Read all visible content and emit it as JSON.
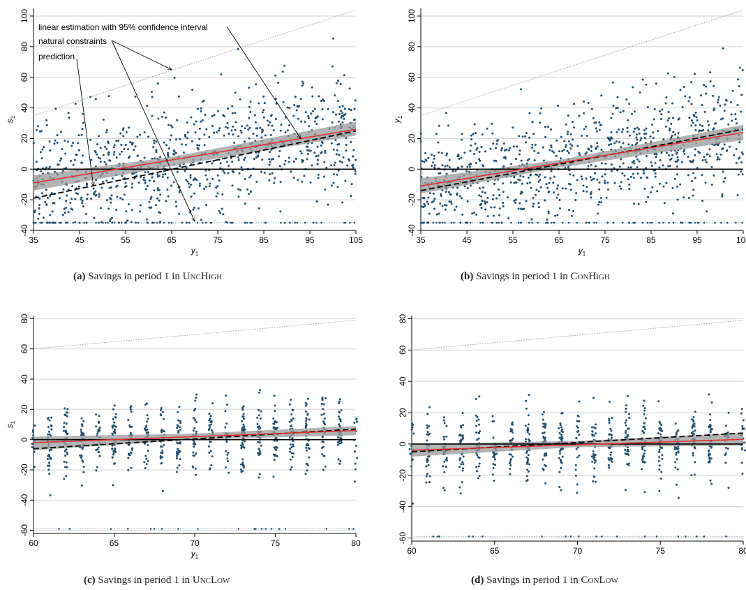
{
  "colors": {
    "points": "#1f4e6e",
    "fit_line": "#e03030",
    "prediction_line": "#000000",
    "confidence_band": "#9a9a9a",
    "constraint_line": "#9a9a9a",
    "zero_line": "#000000",
    "gridline": "#d9d9d9"
  },
  "chart_data": [
    {
      "type": "scatter",
      "panel": "a",
      "caption_label": "(a)",
      "caption_text": "Savings in period 1 in",
      "caption_treatment": "UncHigh",
      "xlabel": "y",
      "xlabel_sub": "1",
      "ylabel": "s",
      "ylabel_sub": "1",
      "xlim": [
        35,
        105
      ],
      "ylim": [
        -40,
        105
      ],
      "xticks": [
        35,
        45,
        55,
        65,
        75,
        85,
        95,
        105
      ],
      "yticks": [
        -40,
        -20,
        0,
        20,
        40,
        60,
        80,
        100
      ],
      "grid": true,
      "legend_position": "top-left",
      "annotations": [
        {
          "text": "linear estimation with 95% confidence interval",
          "target": "fit"
        },
        {
          "text": "natural constraints",
          "target": "constraints"
        },
        {
          "text": "prediction",
          "target": "prediction"
        }
      ],
      "fit_line": {
        "x": [
          35,
          105
        ],
        "y": [
          -9,
          26
        ]
      },
      "confidence_band": {
        "x": [
          35,
          65,
          105
        ],
        "lower": [
          -14,
          2,
          22
        ],
        "upper": [
          -4,
          8,
          31
        ]
      },
      "prediction_line": {
        "x": [
          35,
          105
        ],
        "y": [
          -19,
          25
        ]
      },
      "upper_constraint": {
        "x": [
          35,
          105
        ],
        "y": [
          35,
          104
        ]
      },
      "lower_constraint": {
        "x": [
          35,
          105
        ],
        "y": [
          -35,
          -35
        ]
      },
      "cloud": {
        "n": 900,
        "noise": 20,
        "seed": 11,
        "lower_floor_points": 60
      }
    },
    {
      "type": "scatter",
      "panel": "b",
      "caption_label": "(b)",
      "caption_text": "Savings in period 1 in",
      "caption_treatment": "ConHigh",
      "xlabel": "y",
      "xlabel_sub": "1",
      "ylabel": "y",
      "ylabel_sub": "1",
      "xlim": [
        35,
        105
      ],
      "ylim": [
        -40,
        105
      ],
      "xticks": [
        35,
        45,
        55,
        65,
        75,
        85,
        95,
        105
      ],
      "yticks": [
        -40,
        -20,
        0,
        20,
        40,
        60,
        80,
        100
      ],
      "grid": true,
      "fit_line": {
        "x": [
          35,
          105
        ],
        "y": [
          -11,
          24
        ]
      },
      "confidence_band": {
        "x": [
          35,
          65,
          105
        ],
        "lower": [
          -16,
          1,
          19
        ],
        "upper": [
          -6,
          6,
          29
        ]
      },
      "prediction_line": {
        "x": [
          35,
          105
        ],
        "y": [
          -14,
          26
        ]
      },
      "upper_constraint": {
        "x": [
          35,
          105
        ],
        "y": [
          35,
          104
        ]
      },
      "lower_constraint": {
        "x": [
          35,
          105
        ],
        "y": [
          -35,
          -35
        ]
      },
      "cloud": {
        "n": 900,
        "noise": 18,
        "seed": 23,
        "lower_floor_points": 60
      }
    },
    {
      "type": "scatter",
      "panel": "c",
      "caption_label": "(c)",
      "caption_text": "Savings in period 1 in",
      "caption_treatment": "UncLow",
      "xlabel": "y",
      "xlabel_sub": "1",
      "ylabel": "s",
      "ylabel_sub": "1",
      "xlim": [
        60,
        80
      ],
      "ylim": [
        -62,
        82
      ],
      "xticks": [
        60,
        65,
        70,
        75,
        80
      ],
      "yticks": [
        -60,
        -40,
        -20,
        0,
        20,
        40,
        60,
        80
      ],
      "grid": true,
      "fit_line": {
        "x": [
          60,
          80
        ],
        "y": [
          -2,
          6
        ]
      },
      "confidence_band": {
        "x": [
          60,
          70,
          80
        ],
        "lower": [
          -7,
          0,
          3
        ],
        "upper": [
          2,
          4,
          9
        ]
      },
      "prediction_line": {
        "x": [
          60,
          80
        ],
        "y": [
          -6,
          7
        ]
      },
      "upper_constraint": {
        "x": [
          60,
          80
        ],
        "y": [
          60,
          79
        ]
      },
      "lower_constraint": {
        "x": [
          60,
          80
        ],
        "y": [
          -59,
          -59
        ]
      },
      "cloud": {
        "n": 650,
        "noise": 12,
        "seed": 37,
        "discrete": true,
        "lower_floor_points": 20
      }
    },
    {
      "type": "scatter",
      "panel": "d",
      "caption_label": "(d)",
      "caption_text": "Savings in period 1 in",
      "caption_treatment": "ConLow",
      "xlabel": "",
      "xlabel_sub": "",
      "ylabel": "",
      "ylabel_sub": "",
      "xlim": [
        60,
        80
      ],
      "ylim": [
        -62,
        82
      ],
      "xticks": [
        60,
        65,
        70,
        75,
        80
      ],
      "yticks": [
        -60,
        -40,
        -20,
        0,
        20,
        40,
        60,
        80
      ],
      "grid": true,
      "fit_line": {
        "x": [
          60,
          80
        ],
        "y": [
          -4,
          3
        ]
      },
      "confidence_band": {
        "x": [
          60,
          70,
          80
        ],
        "lower": [
          -8,
          -2,
          -1
        ],
        "upper": [
          0,
          2,
          7
        ]
      },
      "prediction_line": {
        "x": [
          60,
          80
        ],
        "y": [
          -5,
          7
        ]
      },
      "upper_constraint": {
        "x": [
          60,
          80
        ],
        "y": [
          60,
          79
        ]
      },
      "lower_constraint": {
        "x": [
          60,
          80
        ],
        "y": [
          -59,
          -59
        ]
      },
      "cloud": {
        "n": 650,
        "noise": 12,
        "seed": 53,
        "discrete": true,
        "lower_floor_points": 20
      }
    }
  ]
}
